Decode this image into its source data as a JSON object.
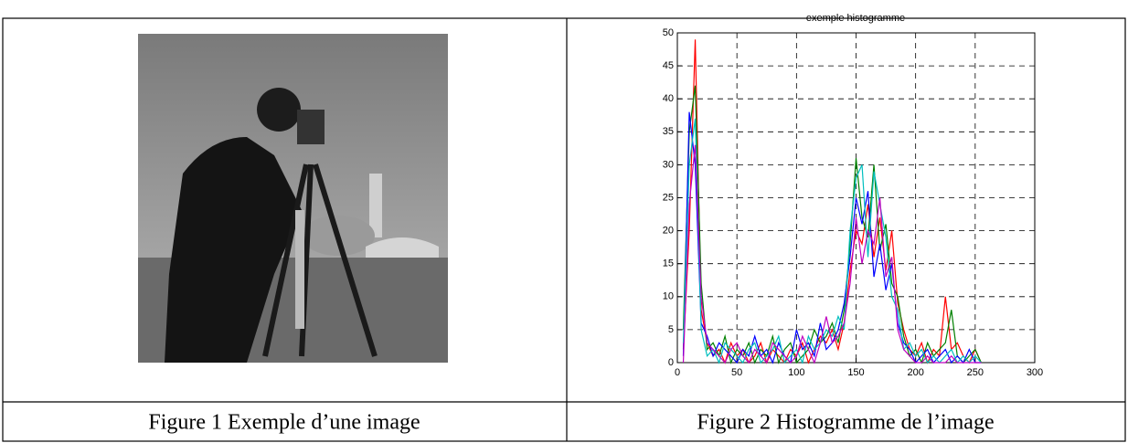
{
  "captions": [
    "Figure 1 Exemple d’une image",
    "Figure 2 Histogramme de l’image"
  ],
  "chart_data": {
    "type": "line",
    "title": "exemple histogramme",
    "x": [
      5,
      10,
      15,
      20,
      25,
      30,
      35,
      40,
      45,
      50,
      55,
      60,
      65,
      70,
      75,
      80,
      85,
      90,
      95,
      100,
      105,
      110,
      115,
      120,
      125,
      130,
      135,
      140,
      145,
      150,
      155,
      160,
      165,
      170,
      175,
      180,
      185,
      190,
      195,
      200,
      205,
      210,
      215,
      220,
      225,
      230,
      235,
      240,
      245,
      250,
      255
    ],
    "series": [
      {
        "color": "#ff0000",
        "values": [
          2,
          20,
          49,
          8,
          3,
          1,
          2,
          0,
          3,
          1,
          2,
          0,
          1,
          3,
          0,
          2,
          1,
          0,
          2,
          1,
          3,
          0,
          2,
          4,
          3,
          5,
          2,
          6,
          14,
          20,
          18,
          24,
          16,
          22,
          14,
          20,
          9,
          5,
          2,
          1,
          3,
          0,
          2,
          1,
          10,
          2,
          3,
          1,
          0,
          2,
          0
        ]
      },
      {
        "color": "#008000",
        "values": [
          5,
          35,
          42,
          12,
          2,
          3,
          1,
          4,
          0,
          2,
          1,
          3,
          0,
          2,
          1,
          4,
          0,
          2,
          3,
          0,
          1,
          2,
          5,
          3,
          4,
          6,
          3,
          8,
          18,
          31,
          22,
          19,
          30,
          17,
          21,
          12,
          10,
          4,
          1,
          2,
          0,
          3,
          1,
          2,
          3,
          8,
          1,
          0,
          1,
          2,
          0
        ]
      },
      {
        "color": "#0000ff",
        "values": [
          1,
          38,
          30,
          6,
          4,
          1,
          3,
          2,
          1,
          0,
          2,
          1,
          4,
          1,
          2,
          0,
          3,
          1,
          0,
          5,
          2,
          3,
          1,
          6,
          2,
          3,
          5,
          9,
          16,
          25,
          21,
          26,
          13,
          18,
          11,
          15,
          6,
          3,
          2,
          0,
          1,
          2,
          0,
          1,
          2,
          0,
          1,
          0,
          2,
          0,
          0
        ]
      },
      {
        "color": "#00bfbf",
        "values": [
          3,
          30,
          37,
          5,
          1,
          2,
          0,
          3,
          2,
          1,
          0,
          2,
          3,
          0,
          1,
          2,
          4,
          0,
          1,
          2,
          0,
          4,
          2,
          3,
          5,
          4,
          7,
          5,
          20,
          28,
          30,
          16,
          29,
          24,
          19,
          10,
          8,
          2,
          3,
          1,
          2,
          0,
          1,
          0,
          1,
          2,
          0,
          1,
          0,
          1,
          0
        ]
      },
      {
        "color": "#bf00bf",
        "values": [
          0,
          24,
          33,
          10,
          3,
          2,
          1,
          0,
          2,
          3,
          1,
          0,
          2,
          1,
          0,
          3,
          2,
          1,
          0,
          1,
          4,
          2,
          0,
          3,
          7,
          3,
          4,
          6,
          12,
          22,
          15,
          20,
          18,
          25,
          13,
          16,
          5,
          2,
          1,
          0,
          0,
          1,
          0,
          0,
          0,
          1,
          0,
          0,
          0,
          0,
          0
        ]
      }
    ],
    "xlim": [
      0,
      300
    ],
    "xticks": [
      0,
      50,
      100,
      150,
      200,
      250,
      300
    ],
    "ylim": [
      0,
      50
    ],
    "yticks": [
      0,
      5,
      10,
      15,
      20,
      25,
      30,
      35,
      40,
      45,
      50
    ],
    "grid": true
  }
}
